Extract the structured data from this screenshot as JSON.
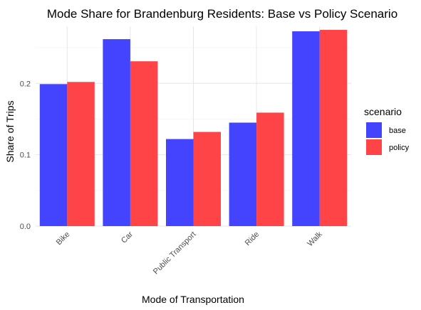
{
  "chart_data": {
    "type": "bar",
    "title": "Mode Share for Brandenburg Residents: Base vs Policy Scenario",
    "xlabel": "Mode of Transportation",
    "ylabel": "Share of Trips",
    "categories": [
      "Bike",
      "Car",
      "Public Transport",
      "Ride",
      "Walk"
    ],
    "series": [
      {
        "name": "base",
        "color": "#4444ff",
        "values": [
          0.199,
          0.262,
          0.122,
          0.145,
          0.273
        ]
      },
      {
        "name": "policy",
        "color": "#ff4447",
        "values": [
          0.202,
          0.231,
          0.132,
          0.159,
          0.275
        ]
      }
    ],
    "ylim": [
      0,
      0.28
    ],
    "yticks": [
      0.0,
      0.1,
      0.2
    ],
    "ytick_labels": [
      "0.0",
      "0.1",
      "0.2"
    ],
    "legend": {
      "title": "scenario",
      "position": "right"
    },
    "grid": true
  }
}
